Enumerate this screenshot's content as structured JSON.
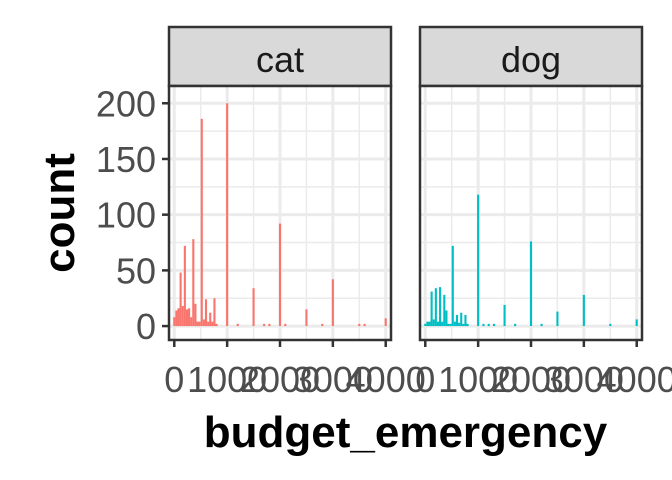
{
  "chart_data": {
    "type": "bar",
    "xlabel": "budget_emergency",
    "ylabel": "count",
    "xlim": [
      -100,
      4100
    ],
    "ylim": [
      0,
      200
    ],
    "x_ticks": [
      0,
      1000,
      2000,
      3000,
      4000
    ],
    "x_tick_labels": [
      "0",
      "1000",
      "2000",
      "3000",
      "4000"
    ],
    "y_ticks": [
      0,
      50,
      100,
      150,
      200
    ],
    "y_tick_labels": [
      "0",
      "50",
      "100",
      "150",
      "200"
    ],
    "grid": true,
    "legend": "none",
    "bin_width": 40,
    "facets": [
      {
        "label": "cat",
        "color": "#F8766D",
        "bins": [
          {
            "x": 0,
            "count": 8
          },
          {
            "x": 40,
            "count": 14
          },
          {
            "x": 80,
            "count": 16
          },
          {
            "x": 120,
            "count": 48
          },
          {
            "x": 160,
            "count": 18
          },
          {
            "x": 200,
            "count": 72
          },
          {
            "x": 240,
            "count": 15
          },
          {
            "x": 280,
            "count": 16
          },
          {
            "x": 320,
            "count": 8
          },
          {
            "x": 360,
            "count": 78
          },
          {
            "x": 400,
            "count": 20
          },
          {
            "x": 440,
            "count": 4
          },
          {
            "x": 480,
            "count": 4
          },
          {
            "x": 520,
            "count": 186
          },
          {
            "x": 560,
            "count": 6
          },
          {
            "x": 600,
            "count": 24
          },
          {
            "x": 640,
            "count": 4
          },
          {
            "x": 680,
            "count": 12
          },
          {
            "x": 720,
            "count": 4
          },
          {
            "x": 760,
            "count": 25
          },
          {
            "x": 800,
            "count": 2
          },
          {
            "x": 1000,
            "count": 200
          },
          {
            "x": 1200,
            "count": 2
          },
          {
            "x": 1500,
            "count": 34
          },
          {
            "x": 1700,
            "count": 2
          },
          {
            "x": 1800,
            "count": 2
          },
          {
            "x": 2000,
            "count": 92
          },
          {
            "x": 2100,
            "count": 2
          },
          {
            "x": 2500,
            "count": 15
          },
          {
            "x": 2800,
            "count": 2
          },
          {
            "x": 3000,
            "count": 42
          },
          {
            "x": 3500,
            "count": 2
          },
          {
            "x": 3600,
            "count": 2
          },
          {
            "x": 4000,
            "count": 7
          }
        ]
      },
      {
        "label": "dog",
        "color": "#00BFC4",
        "bins": [
          {
            "x": 0,
            "count": 2
          },
          {
            "x": 40,
            "count": 4
          },
          {
            "x": 80,
            "count": 4
          },
          {
            "x": 120,
            "count": 31
          },
          {
            "x": 160,
            "count": 6
          },
          {
            "x": 200,
            "count": 34
          },
          {
            "x": 240,
            "count": 4
          },
          {
            "x": 280,
            "count": 35
          },
          {
            "x": 320,
            "count": 4
          },
          {
            "x": 360,
            "count": 28
          },
          {
            "x": 400,
            "count": 14
          },
          {
            "x": 440,
            "count": 2
          },
          {
            "x": 480,
            "count": 2
          },
          {
            "x": 520,
            "count": 72
          },
          {
            "x": 560,
            "count": 4
          },
          {
            "x": 600,
            "count": 10
          },
          {
            "x": 640,
            "count": 3
          },
          {
            "x": 680,
            "count": 12
          },
          {
            "x": 720,
            "count": 2
          },
          {
            "x": 760,
            "count": 10
          },
          {
            "x": 800,
            "count": 2
          },
          {
            "x": 1000,
            "count": 118
          },
          {
            "x": 1100,
            "count": 2
          },
          {
            "x": 1200,
            "count": 2
          },
          {
            "x": 1300,
            "count": 2
          },
          {
            "x": 1500,
            "count": 19
          },
          {
            "x": 1700,
            "count": 2
          },
          {
            "x": 2000,
            "count": 76
          },
          {
            "x": 2200,
            "count": 2
          },
          {
            "x": 2500,
            "count": 13
          },
          {
            "x": 3000,
            "count": 28
          },
          {
            "x": 3500,
            "count": 2
          },
          {
            "x": 4000,
            "count": 6
          }
        ]
      }
    ]
  }
}
